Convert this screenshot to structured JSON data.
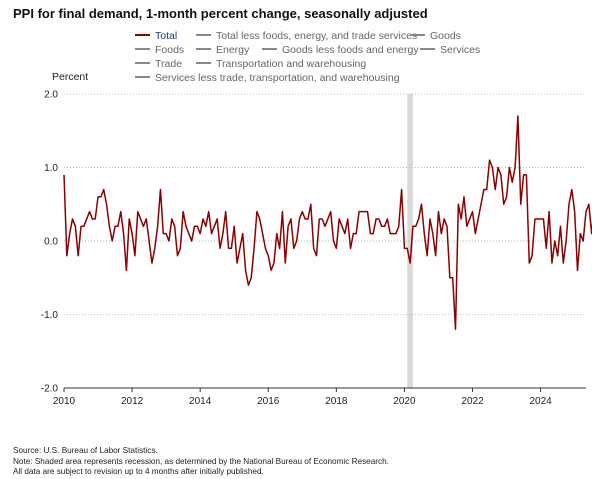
{
  "title": "PPI for final demand, 1-month percent change, seasonally adjusted",
  "legend": {
    "items": [
      {
        "label": "Total",
        "active": true
      },
      {
        "label": "Total less foods, energy, and trade services",
        "active": false
      },
      {
        "label": "Goods",
        "active": false
      },
      {
        "label": "Foods",
        "active": false
      },
      {
        "label": "Energy",
        "active": false
      },
      {
        "label": "Goods less foods and energy",
        "active": false
      },
      {
        "label": "Services",
        "active": false
      },
      {
        "label": "Trade",
        "active": false
      },
      {
        "label": "Transportation and warehousing",
        "active": false
      },
      {
        "label": "Services less trade, transportation, and warehousing",
        "active": false
      }
    ]
  },
  "colors": {
    "series": "#8b0000",
    "grid": "#bbbbbb",
    "recession": "#d9d9d9",
    "axis": "#333333"
  },
  "chart_data": {
    "type": "line",
    "title": "PPI for final demand, 1-month percent change, seasonally adjusted",
    "ylabel": "Percent",
    "xlabel": "",
    "ylim": [
      -2.0,
      2.0
    ],
    "xlim": [
      "2010-01",
      "2025-05"
    ],
    "grid": true,
    "yticks": [
      {
        "value": 2.0,
        "label": "2.0"
      },
      {
        "value": 1.0,
        "label": "1.0"
      },
      {
        "value": 0.0,
        "label": "0.0"
      },
      {
        "value": -1.0,
        "label": "-1.0"
      },
      {
        "value": -2.0,
        "label": "-2.0"
      }
    ],
    "xticks": [
      {
        "value": "2010-01",
        "label": "2010"
      },
      {
        "value": "2012-01",
        "label": "2012"
      },
      {
        "value": "2014-01",
        "label": "2014"
      },
      {
        "value": "2016-01",
        "label": "2016"
      },
      {
        "value": "2018-01",
        "label": "2018"
      },
      {
        "value": "2020-01",
        "label": "2020"
      },
      {
        "value": "2022-01",
        "label": "2022"
      },
      {
        "value": "2024-01",
        "label": "2024"
      }
    ],
    "recessions": [
      {
        "start": "2020-02",
        "end": "2020-04"
      }
    ],
    "series": [
      {
        "name": "Total",
        "start": "2010-01",
        "values": [
          0.9,
          -0.2,
          0.1,
          0.3,
          0.2,
          -0.2,
          0.2,
          0.2,
          0.3,
          0.4,
          0.3,
          0.3,
          0.6,
          0.6,
          0.7,
          0.5,
          0.2,
          0.0,
          0.2,
          0.2,
          0.4,
          0.1,
          -0.4,
          0.3,
          0.1,
          -0.2,
          0.4,
          0.3,
          0.2,
          0.3,
          0.0,
          -0.3,
          -0.1,
          0.2,
          0.7,
          0.1,
          0.1,
          0.0,
          0.3,
          0.2,
          -0.2,
          -0.1,
          0.4,
          0.2,
          0.1,
          0.0,
          0.2,
          0.2,
          0.1,
          0.3,
          0.2,
          0.4,
          0.1,
          0.2,
          0.3,
          -0.1,
          0.1,
          0.4,
          -0.1,
          -0.1,
          0.2,
          -0.3,
          -0.1,
          0.1,
          -0.4,
          -0.6,
          -0.5,
          -0.1,
          0.4,
          0.3,
          0.1,
          -0.1,
          -0.2,
          -0.4,
          -0.3,
          0.1,
          -0.1,
          0.4,
          -0.3,
          0.2,
          0.3,
          -0.1,
          0.0,
          0.3,
          0.4,
          0.3,
          0.3,
          0.5,
          -0.1,
          -0.2,
          0.3,
          0.3,
          0.2,
          0.3,
          0.4,
          0.0,
          -0.1,
          0.3,
          0.2,
          0.1,
          0.3,
          -0.1,
          0.1,
          0.1,
          0.4,
          0.4,
          0.4,
          0.4,
          0.1,
          0.1,
          0.3,
          0.3,
          0.2,
          0.2,
          0.3,
          0.1,
          0.1,
          0.1,
          0.2,
          0.7,
          -0.1,
          -0.1,
          -0.3,
          0.2,
          0.2,
          0.3,
          0.5,
          0.1,
          -0.2,
          0.3,
          0.1,
          -0.2,
          0.4,
          0.1,
          0.3,
          0.2,
          -0.5,
          -0.5,
          -1.2,
          0.5,
          0.3,
          0.6,
          0.2,
          0.3,
          0.4,
          0.1,
          0.3,
          0.5,
          0.7,
          0.7,
          1.1,
          1.0,
          0.7,
          1.0,
          0.9,
          0.5,
          0.6,
          1.0,
          0.8,
          1.0,
          1.7,
          0.5,
          0.9,
          0.9,
          -0.3,
          -0.2,
          0.3,
          0.3,
          0.3,
          0.3,
          -0.1,
          0.4,
          -0.3,
          0.0,
          -0.2,
          0.2,
          -0.3,
          0.0,
          0.5,
          0.7,
          0.4,
          -0.4,
          0.1,
          0.0,
          0.4,
          0.5,
          0.1,
          0.5,
          0.1,
          0.4,
          0.0,
          0.3,
          0.3,
          0.3,
          0.3,
          0.1,
          0.5,
          0.7,
          0.2,
          0.0,
          -0.1,
          -0.2,
          0.1
        ]
      }
    ]
  },
  "notes": [
    "Source: U.S. Bureau of Labor Statistics.",
    "Note: Shaded area represents recession, as determined by the National Bureau of Economic Research.",
    "All data are subject to revision up to 4 months after initially published."
  ]
}
